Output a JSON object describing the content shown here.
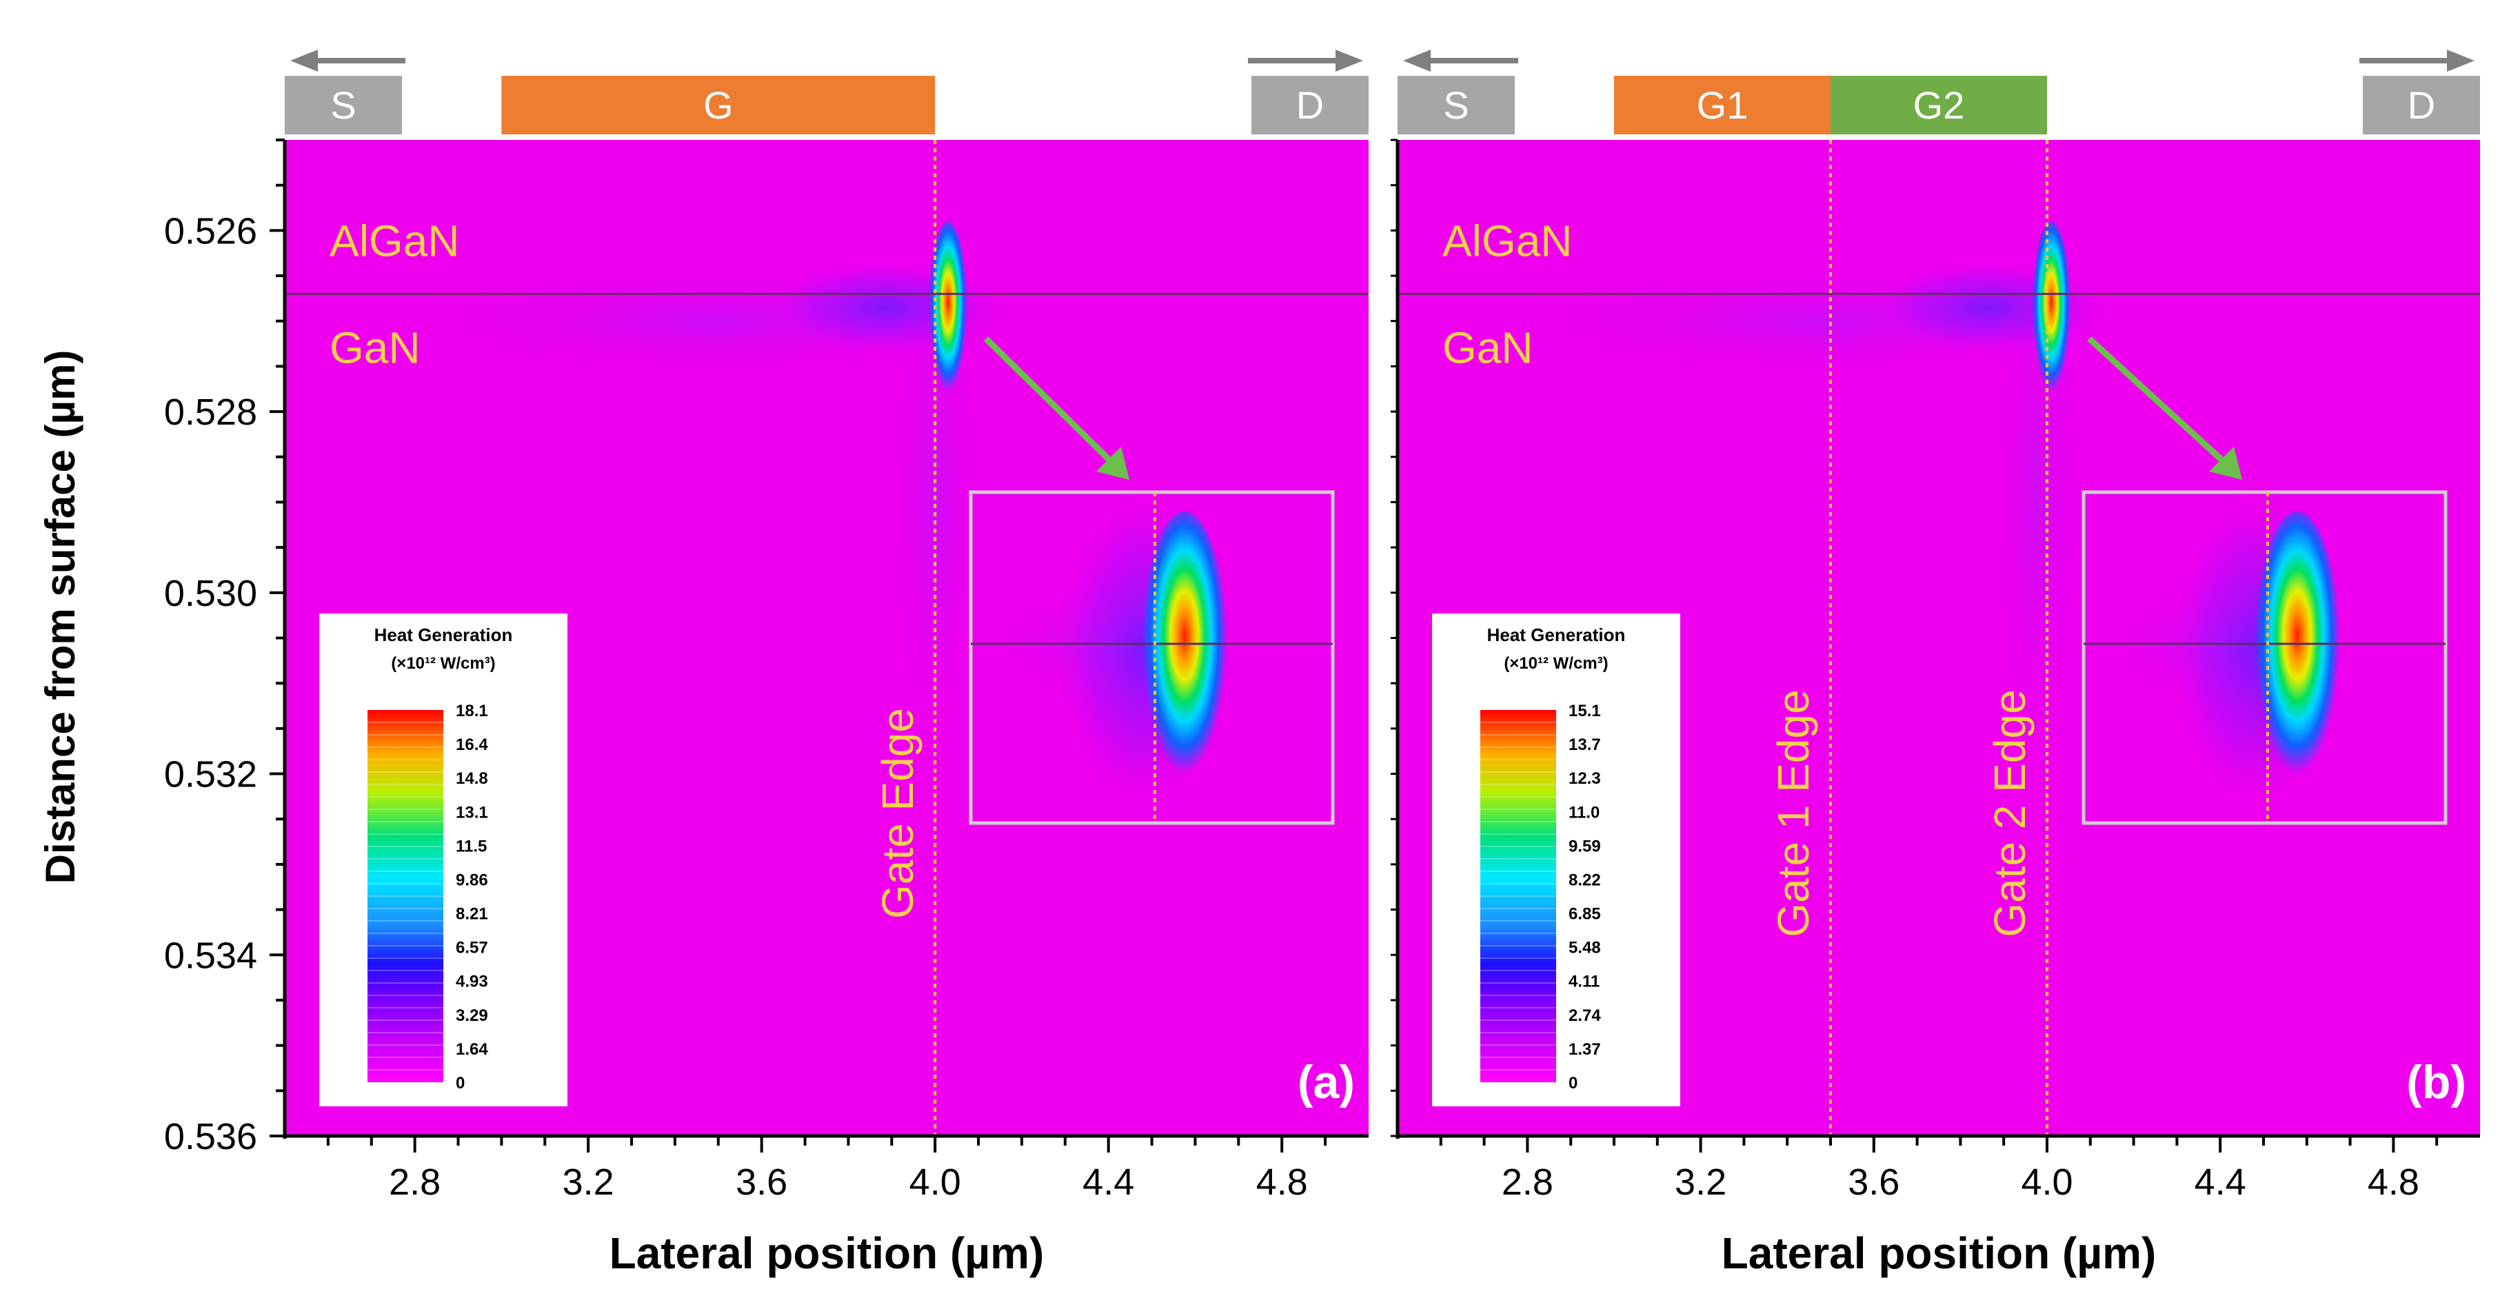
{
  "figure": {
    "y_axis_label": "Distance from surface (µm)"
  },
  "colors": {
    "background": "#ee00ee",
    "gate_g": "#ed7d31",
    "gate_g1": "#ed7d31",
    "gate_g2": "#70ad47",
    "contact": "#a6a6a6",
    "edge_line": "#f5c13c",
    "text_yellow": "#f2d24a",
    "arrow_green": "#6cbf4b",
    "arrow_grey": "#7f7f7f"
  },
  "chart_data": [
    {
      "type": "heatmap",
      "panel_label": "(a)",
      "xlabel": "Lateral position (µm)",
      "ylabel": "Distance from surface (µm)",
      "xlim": [
        2.5,
        5.0
      ],
      "ylim": [
        0.536,
        0.525
      ],
      "x_ticks": [
        "2.8",
        "3.2",
        "3.6",
        "4.0",
        "4.4",
        "4.8"
      ],
      "y_ticks": [
        "0.526",
        "0.528",
        "0.530",
        "0.532",
        "0.534",
        "0.536"
      ],
      "interface_depth": 0.5267,
      "layers": [
        "AlGaN",
        "GaN"
      ],
      "electrodes": [
        {
          "label": "S",
          "type": "contact",
          "arrow": "left"
        },
        {
          "label": "G",
          "type": "gate",
          "from": 3.0,
          "to": 4.0
        },
        {
          "label": "D",
          "type": "contact",
          "arrow": "right"
        }
      ],
      "edge_lines": [
        {
          "x": 4.0,
          "label": "Gate Edge"
        }
      ],
      "hotspot": {
        "x": 4.03,
        "y": 0.5267,
        "peak": 18.1
      },
      "colorbar": {
        "title": "Heat Generation",
        "units": "(×10¹² W/cm³)",
        "labels": [
          "18.1",
          "16.4",
          "14.8",
          "13.1",
          "11.5",
          "9.86",
          "8.21",
          "6.57",
          "4.93",
          "3.29",
          "1.64",
          "0"
        ]
      }
    },
    {
      "type": "heatmap",
      "panel_label": "(b)",
      "xlabel": "Lateral position (µm)",
      "ylabel": "",
      "xlim": [
        2.5,
        5.0
      ],
      "ylim": [
        0.536,
        0.525
      ],
      "x_ticks": [
        "2.8",
        "3.2",
        "3.6",
        "4.0",
        "4.4",
        "4.8"
      ],
      "y_ticks": [],
      "interface_depth": 0.5267,
      "layers": [
        "AlGaN",
        "GaN"
      ],
      "electrodes": [
        {
          "label": "S",
          "type": "contact",
          "arrow": "left"
        },
        {
          "label": "G1",
          "type": "gate",
          "from": 3.0,
          "to": 3.5
        },
        {
          "label": "G2",
          "type": "gate2",
          "from": 3.5,
          "to": 4.0
        },
        {
          "label": "D",
          "type": "contact",
          "arrow": "right"
        }
      ],
      "edge_lines": [
        {
          "x": 3.5,
          "label": "Gate 1 Edge"
        },
        {
          "x": 4.0,
          "label": "Gate 2 Edge"
        }
      ],
      "hotspot": {
        "x": 4.01,
        "y": 0.5267,
        "peak": 15.1
      },
      "colorbar": {
        "title": "Heat Generation",
        "units": "(×10¹² W/cm³)",
        "labels": [
          "15.1",
          "13.7",
          "12.3",
          "11.0",
          "9.59",
          "8.22",
          "6.85",
          "5.48",
          "4.11",
          "2.74",
          "1.37",
          "0"
        ]
      }
    }
  ]
}
